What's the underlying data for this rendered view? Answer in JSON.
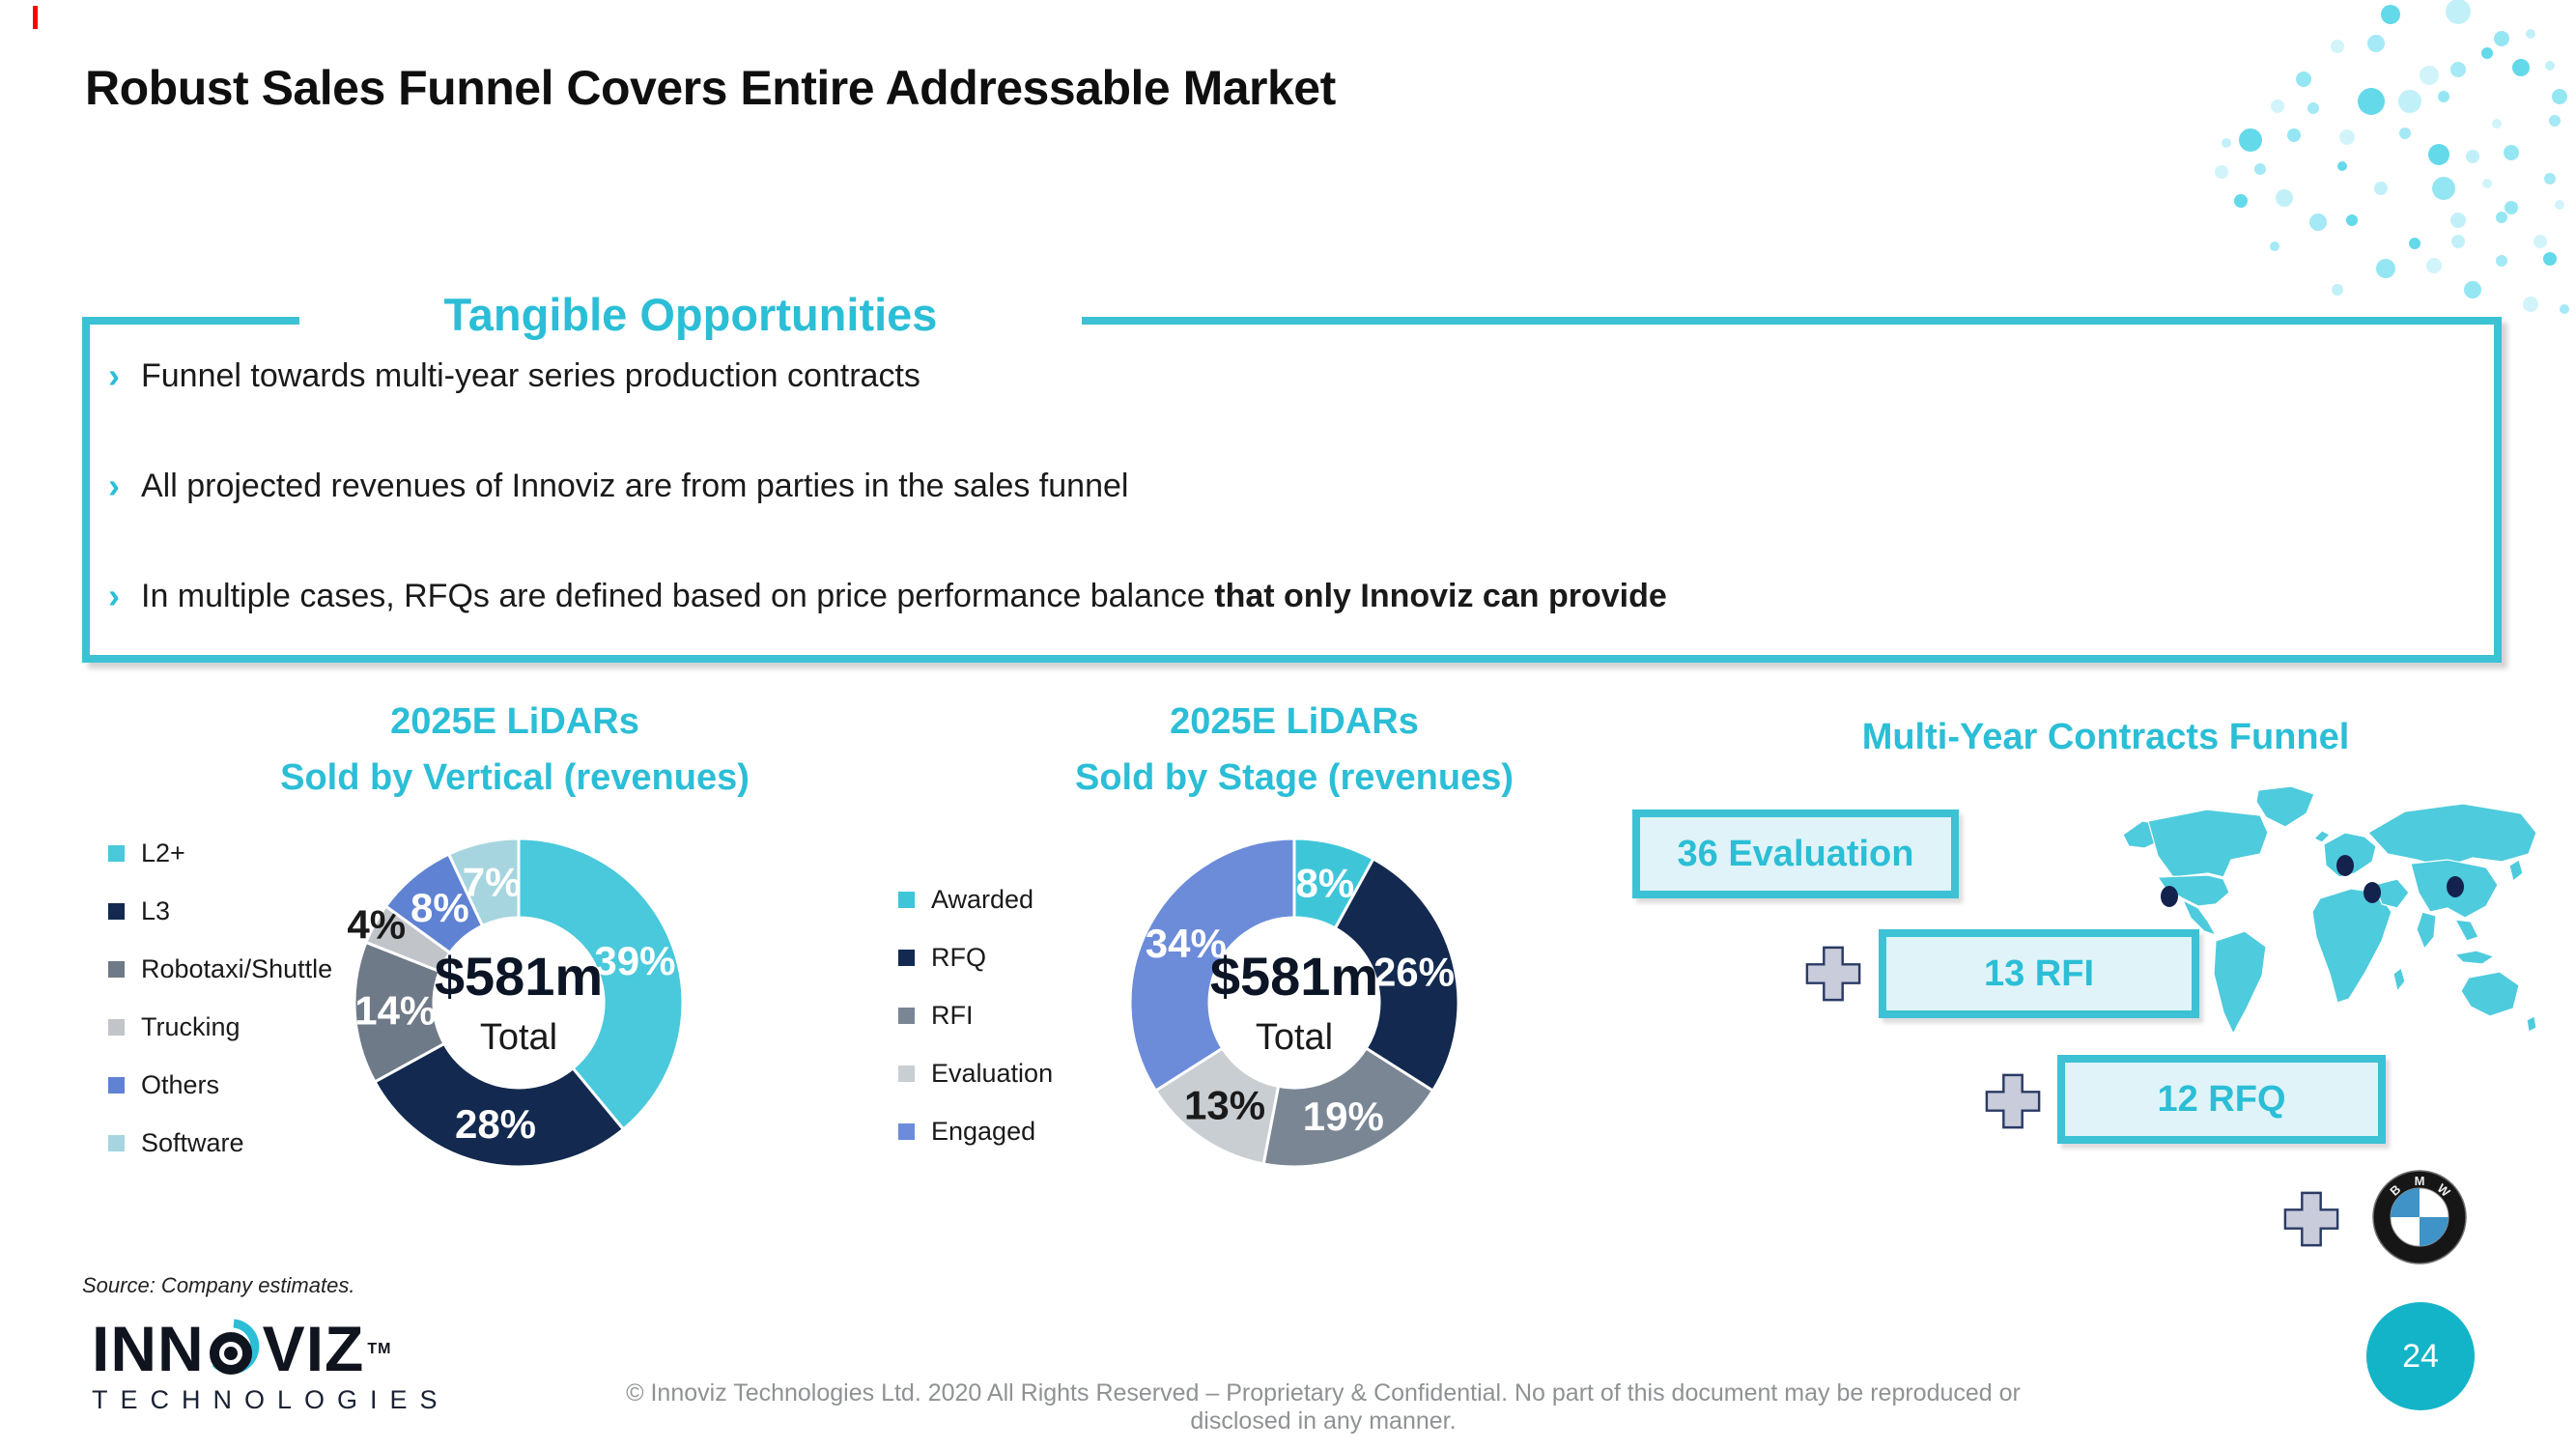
{
  "slide": {
    "title": "Robust Sales Funnel Covers Entire Addressable Market",
    "source_note": "Source: Company estimates.",
    "copyright": "© Innoviz Technologies Ltd. 2020 All Rights Reserved – Proprietary & Confidential. No part of this document may be reproduced or disclosed in any manner.",
    "page_number": "24",
    "accent_color": "#2bbed6"
  },
  "opportunities": {
    "heading": "Tangible Opportunities",
    "bullet_char": "›",
    "bullets": [
      {
        "text": "Funnel towards multi-year series production contracts",
        "bold": ""
      },
      {
        "text": "All projected revenues of Innoviz are from parties in the sales funnel",
        "bold": ""
      },
      {
        "text": "In multiple cases, RFQs are defined based on price performance balance ",
        "bold": "that only Innoviz can provide"
      }
    ]
  },
  "chart_data": [
    {
      "type": "pie",
      "subtype": "donut",
      "title_line1": "2025E LiDARs",
      "title_line2": "Sold by Vertical (revenues)",
      "center_value": "$581m",
      "center_label": "Total",
      "legend_position": "left",
      "series": [
        {
          "name": "L2+",
          "value": 39,
          "color": "#49c9db",
          "label": "39%"
        },
        {
          "name": "L3",
          "value": 28,
          "color": "#13294f",
          "label": "28%"
        },
        {
          "name": "Robotaxi/Shuttle",
          "value": 14,
          "color": "#6f7a88",
          "label": "14%"
        },
        {
          "name": "Trucking",
          "value": 4,
          "color": "#c1c5ca",
          "label": "4%",
          "label_color": "#1a1a1a",
          "label_r": 168
        },
        {
          "name": "Others",
          "value": 8,
          "color": "#5f82d3",
          "label": "8%"
        },
        {
          "name": "Software",
          "value": 7,
          "color": "#a7d5df",
          "label": "7%"
        }
      ]
    },
    {
      "type": "pie",
      "subtype": "donut",
      "title_line1": "2025E LiDARs",
      "title_line2": "Sold by Stage (revenues)",
      "center_value": "$581m",
      "center_label": "Total",
      "legend_position": "left",
      "series": [
        {
          "name": "Awarded",
          "value": 8,
          "color": "#3ec6d8",
          "label": "8%"
        },
        {
          "name": "RFQ",
          "value": 26,
          "color": "#13294f",
          "label": "26%"
        },
        {
          "name": "RFI",
          "value": 19,
          "color": "#7a8694",
          "label": "19%"
        },
        {
          "name": "Evaluation",
          "value": 13,
          "color": "#c9ced3",
          "label": "13%",
          "label_color": "#1a1a1a"
        },
        {
          "name": "Engaged",
          "value": 34,
          "color": "#6c8cda",
          "label": "34%"
        }
      ]
    }
  ],
  "funnel": {
    "heading": "Multi-Year Contracts Funnel",
    "stages": [
      {
        "label": "36 Evaluation"
      },
      {
        "label": "13 RFI"
      },
      {
        "label": "12 RFQ"
      }
    ],
    "partner": "BMW"
  },
  "logo": {
    "brand_left": "INN",
    "brand_right": "VIZ",
    "tm": "TM",
    "sub": "TECHNOLOGIES"
  }
}
